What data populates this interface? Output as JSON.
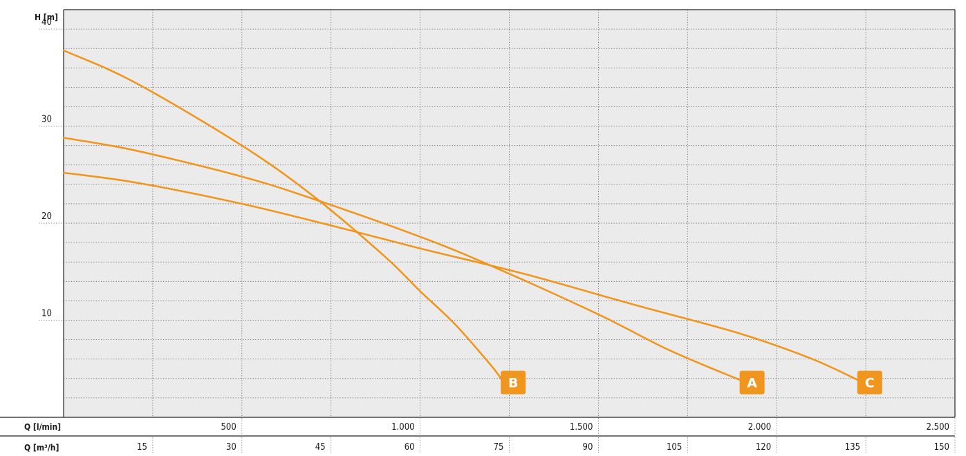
{
  "chart_data": {
    "type": "line",
    "ylabel": "H [m]",
    "xlabel": "Q [l/min]",
    "x2label": "Q [m³/h]",
    "xlim": [
      0,
      2500
    ],
    "ylim": [
      0,
      42
    ],
    "grid": true,
    "y_ticks": [
      {
        "value": 10,
        "label": "10"
      },
      {
        "value": 20,
        "label": "20"
      },
      {
        "value": 30,
        "label": "30"
      },
      {
        "value": 40,
        "label": "40"
      }
    ],
    "x_ticks": [
      {
        "value": 500,
        "label": "500"
      },
      {
        "value": 1000,
        "label": "1.000"
      },
      {
        "value": 1500,
        "label": "1.500"
      },
      {
        "value": 2000,
        "label": "2.000"
      },
      {
        "value": 2500,
        "label": "2.500"
      }
    ],
    "x2_ticks": [
      {
        "value": 250,
        "label": "15"
      },
      {
        "value": 500,
        "label": "30"
      },
      {
        "value": 750,
        "label": "45"
      },
      {
        "value": 1000,
        "label": "60"
      },
      {
        "value": 1250,
        "label": "75"
      },
      {
        "value": 1500,
        "label": "90"
      },
      {
        "value": 1750,
        "label": "105"
      },
      {
        "value": 2000,
        "label": "120"
      },
      {
        "value": 2250,
        "label": "135"
      },
      {
        "value": 2500,
        "label": "150"
      }
    ],
    "line_color": "#f0961e",
    "badge_color": "#f0961e",
    "plot_background": "#ebebeb",
    "series": [
      {
        "name": "B",
        "x": [
          0,
          200,
          500,
          700,
          900,
          1000,
          1100,
          1200,
          1230
        ],
        "y": [
          37.8,
          34.5,
          28,
          22.8,
          16.6,
          13,
          9.5,
          5.3,
          3.8
        ]
      },
      {
        "name": "A",
        "x": [
          0,
          200,
          500,
          700,
          1000,
          1200,
          1500,
          1700,
          1900
        ],
        "y": [
          28.8,
          27.5,
          24.8,
          22.5,
          18.6,
          15.6,
          10.6,
          6.9,
          3.8
        ]
      },
      {
        "name": "C",
        "x": [
          0,
          200,
          500,
          800,
          1000,
          1300,
          1600,
          1900,
          2100,
          2230
        ],
        "y": [
          25.2,
          24.2,
          22,
          19.3,
          17.4,
          14.7,
          11.6,
          8.6,
          6.0,
          3.8
        ]
      }
    ]
  }
}
